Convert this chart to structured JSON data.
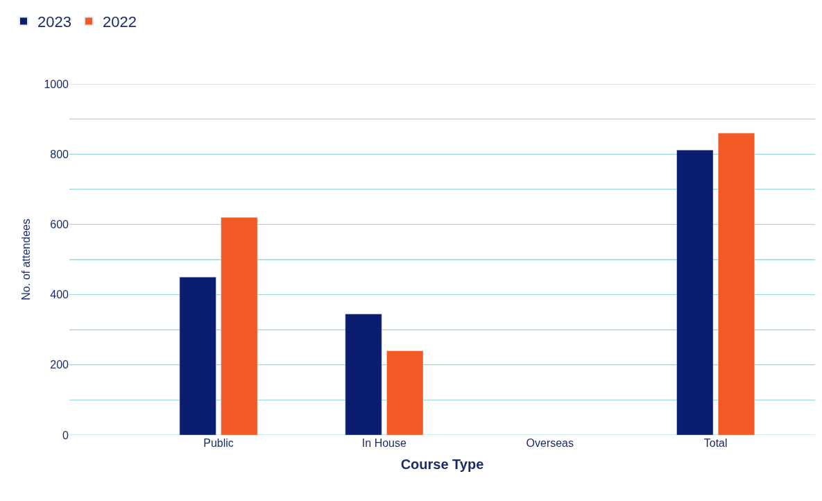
{
  "chart_data": {
    "type": "bar",
    "xlabel": "Course Type",
    "ylabel": "No. of attendees",
    "categories": [
      "Public",
      "In House",
      "Overseas",
      "Total"
    ],
    "series": [
      {
        "name": "2023",
        "color": "#0b1d6e",
        "values": [
          450,
          345,
          null,
          812
        ]
      },
      {
        "name": "2022",
        "color": "#f15a24",
        "values": [
          620,
          240,
          null,
          860
        ]
      }
    ],
    "ylim": [
      0,
      1000
    ],
    "yticks": [
      0,
      {
        "value": 100,
        "label": null
      },
      200,
      {
        "value": 300,
        "label": null
      },
      400,
      {
        "value": 500,
        "label": null
      },
      600,
      {
        "value": 700,
        "label": null
      },
      800,
      {
        "value": 900,
        "label": null
      },
      1000
    ],
    "grid": "y",
    "legend": "top left"
  }
}
